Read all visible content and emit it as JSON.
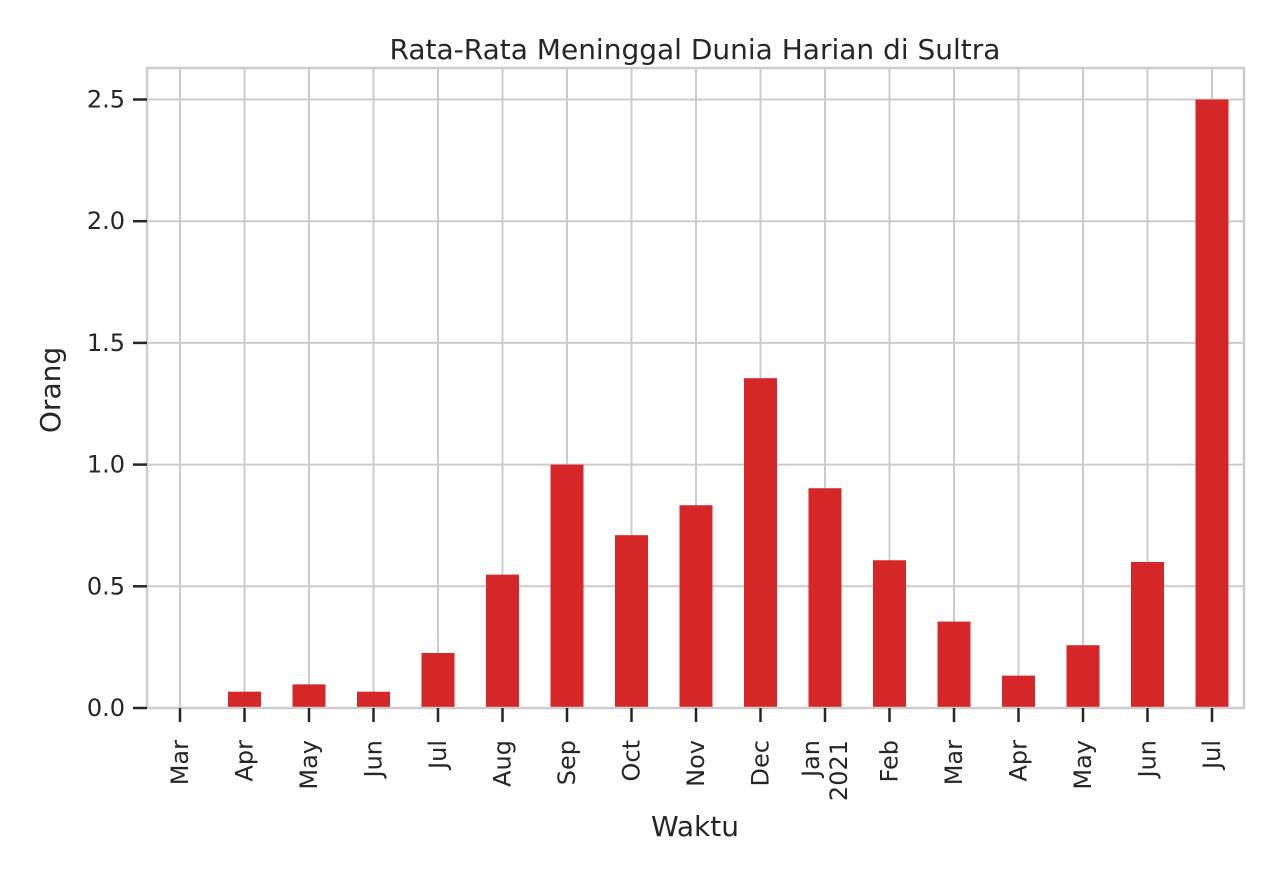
{
  "chart_data": {
    "type": "bar",
    "title": "Rata-Rata Meninggal Dunia Harian di Sultra",
    "xlabel": "Waktu",
    "ylabel": "Orang",
    "ylim": [
      0,
      2.6
    ],
    "yticks": [
      "0.0",
      "0.5",
      "1.0",
      "1.5",
      "2.0",
      "2.5"
    ],
    "grid": true,
    "categories": [
      "Mar",
      "Apr",
      "May",
      "Jun",
      "Jul",
      "Aug",
      "Sep",
      "Oct",
      "Nov",
      "Dec",
      "Jan\n2021",
      "Feb",
      "Mar",
      "Apr",
      "May",
      "Jun",
      "Jul"
    ],
    "values": [
      0.0,
      0.067,
      0.097,
      0.067,
      0.226,
      0.548,
      1.0,
      0.71,
      0.833,
      1.355,
      0.903,
      0.607,
      0.355,
      0.133,
      0.258,
      0.6,
      2.5
    ],
    "bar_color": "#d62728"
  }
}
